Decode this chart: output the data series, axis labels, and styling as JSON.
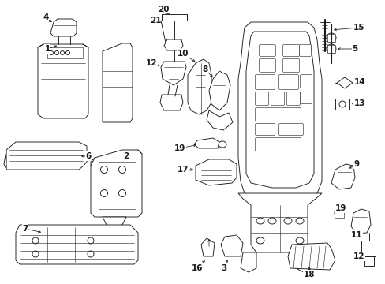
{
  "background_color": "#ffffff",
  "line_color": "#1a1a1a",
  "label_fontsize": 7.5,
  "lw": 0.65,
  "fig_w": 4.89,
  "fig_h": 3.6,
  "dpi": 100
}
